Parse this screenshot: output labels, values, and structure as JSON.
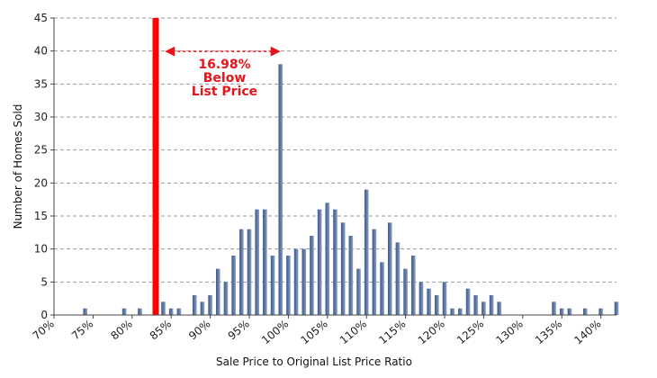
{
  "chart_data": {
    "type": "bar",
    "xlabel": "Sale Price to Original List Price Ratio",
    "ylabel": "Number of Homes Sold",
    "xlim": [
      70,
      142
    ],
    "ylim": [
      0,
      45
    ],
    "y_ticks": [
      0,
      5,
      10,
      15,
      20,
      25,
      30,
      35,
      40,
      45
    ],
    "x_ticks": [
      {
        "value": 70,
        "label": "70%"
      },
      {
        "value": 75,
        "label": "75%"
      },
      {
        "value": 80,
        "label": "80%"
      },
      {
        "value": 85,
        "label": "85%"
      },
      {
        "value": 90,
        "label": "90%"
      },
      {
        "value": 95,
        "label": "95%"
      },
      {
        "value": 100,
        "label": "100%"
      },
      {
        "value": 105,
        "label": "105%"
      },
      {
        "value": 110,
        "label": "110%"
      },
      {
        "value": 115,
        "label": "115%"
      },
      {
        "value": 120,
        "label": "120%"
      },
      {
        "value": 125,
        "label": "125%"
      },
      {
        "value": 130,
        "label": "130%"
      },
      {
        "value": 135,
        "label": "135%"
      },
      {
        "value": 140,
        "label": "140%"
      }
    ],
    "grid": true,
    "bar_color": "#5f7aa6",
    "x": [
      74,
      79,
      81,
      84,
      85,
      86,
      88,
      89,
      90,
      91,
      92,
      93,
      94,
      95,
      96,
      97,
      98,
      99,
      100,
      101,
      102,
      103,
      104,
      105,
      106,
      107,
      108,
      109,
      110,
      111,
      112,
      113,
      114,
      115,
      116,
      117,
      118,
      119,
      120,
      121,
      122,
      123,
      124,
      125,
      126,
      127,
      134,
      135,
      136,
      138,
      140,
      142
    ],
    "values": [
      1,
      1,
      1,
      2,
      1,
      1,
      3,
      2,
      3,
      7,
      5,
      9,
      13,
      13,
      16,
      16,
      9,
      38,
      9,
      10,
      10,
      12,
      16,
      17,
      16,
      14,
      12,
      7,
      19,
      13,
      8,
      14,
      11,
      7,
      9,
      5,
      4,
      3,
      5,
      1,
      1,
      4,
      3,
      2,
      3,
      2,
      2,
      1,
      1,
      1,
      1,
      2
    ],
    "reference_line": {
      "x": 83.02,
      "color": "#ff0000"
    },
    "annotation": {
      "lines": [
        "16.98%",
        "Below",
        "List Price"
      ],
      "from_x": 84.2,
      "to_x": 99.0,
      "y": 40,
      "color": "#e8141b"
    }
  }
}
